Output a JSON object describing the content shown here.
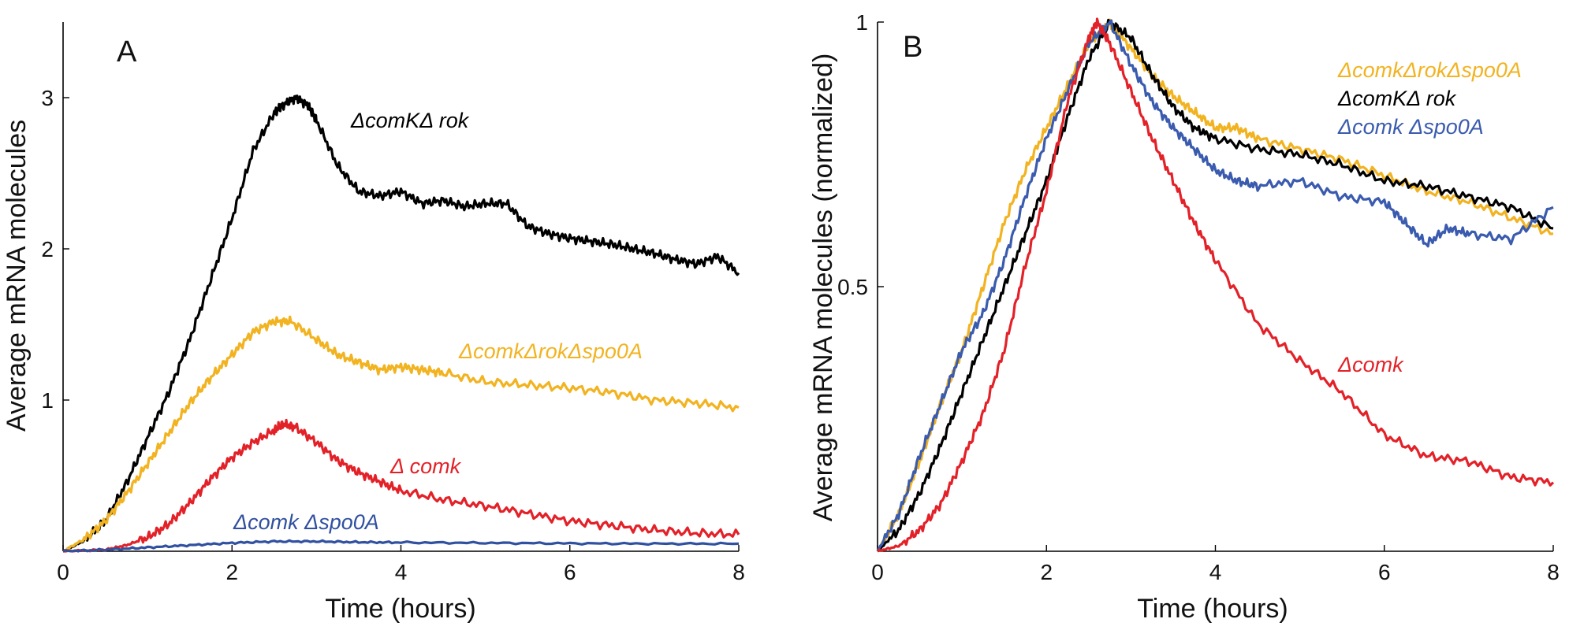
{
  "chart_data": [
    {
      "type": "line",
      "panel_label": "A",
      "xlabel": "Time (hours)",
      "ylabel": "Average mRNA molecules",
      "xlim": [
        0,
        8
      ],
      "ylim": [
        0,
        3.5
      ],
      "xticks": [
        0,
        2,
        4,
        6,
        8
      ],
      "yticks": [
        1,
        2,
        3
      ],
      "grid": false,
      "series": [
        {
          "name": "ΔcomKΔ rok",
          "color": "#000000",
          "x": [
            0,
            0.25,
            0.5,
            0.75,
            1.0,
            1.25,
            1.5,
            1.75,
            2.0,
            2.25,
            2.5,
            2.6,
            2.75,
            2.9,
            3.0,
            3.25,
            3.5,
            3.75,
            4.0,
            4.25,
            4.5,
            4.75,
            5.0,
            5.25,
            5.5,
            5.75,
            6.0,
            6.25,
            6.5,
            6.75,
            7.0,
            7.25,
            7.5,
            7.75,
            8.0
          ],
          "y": [
            0,
            0.07,
            0.2,
            0.45,
            0.75,
            1.05,
            1.4,
            1.8,
            2.2,
            2.65,
            2.9,
            2.95,
            3.0,
            2.95,
            2.85,
            2.55,
            2.38,
            2.35,
            2.38,
            2.3,
            2.32,
            2.28,
            2.3,
            2.3,
            2.15,
            2.1,
            2.07,
            2.05,
            2.03,
            2.0,
            1.97,
            1.93,
            1.9,
            1.95,
            1.84
          ]
        },
        {
          "name": "ΔcomkΔrokΔspo0A",
          "color": "#F2B321",
          "x": [
            0,
            0.25,
            0.5,
            0.75,
            1.0,
            1.25,
            1.5,
            1.75,
            2.0,
            2.25,
            2.5,
            2.7,
            3.0,
            3.25,
            3.5,
            3.75,
            4.0,
            4.25,
            4.5,
            5.0,
            5.5,
            6.0,
            6.5,
            7.0,
            7.5,
            8.0
          ],
          "y": [
            0,
            0.08,
            0.2,
            0.38,
            0.58,
            0.78,
            0.98,
            1.15,
            1.3,
            1.45,
            1.52,
            1.52,
            1.4,
            1.3,
            1.25,
            1.2,
            1.22,
            1.2,
            1.18,
            1.12,
            1.1,
            1.08,
            1.05,
            1.0,
            0.98,
            0.95
          ]
        },
        {
          "name": "Δ comk",
          "color": "#E32128",
          "x": [
            0,
            0.5,
            0.75,
            1.0,
            1.25,
            1.5,
            1.75,
            2.0,
            2.25,
            2.5,
            2.6,
            2.75,
            3.0,
            3.25,
            3.5,
            3.75,
            4.0,
            4.5,
            5.0,
            5.5,
            6.0,
            6.5,
            7.0,
            7.5,
            8.0
          ],
          "y": [
            0,
            0.01,
            0.04,
            0.09,
            0.18,
            0.32,
            0.48,
            0.62,
            0.72,
            0.8,
            0.84,
            0.82,
            0.72,
            0.6,
            0.52,
            0.46,
            0.4,
            0.34,
            0.3,
            0.25,
            0.2,
            0.17,
            0.14,
            0.12,
            0.11
          ]
        },
        {
          "name": "Δcomk Δspo0A",
          "color": "#3050A0",
          "x": [
            0,
            0.5,
            1.0,
            1.5,
            2.0,
            2.5,
            3.0,
            3.5,
            4.0,
            5.0,
            6.0,
            7.0,
            8.0
          ],
          "y": [
            0,
            0.01,
            0.025,
            0.04,
            0.055,
            0.065,
            0.065,
            0.06,
            0.058,
            0.055,
            0.052,
            0.05,
            0.05
          ]
        }
      ]
    },
    {
      "type": "line",
      "panel_label": "B",
      "xlabel": "Time (hours)",
      "ylabel": "Average mRNA molecules (normalized)",
      "xlim": [
        0,
        8
      ],
      "ylim": [
        0,
        1
      ],
      "xticks": [
        0,
        2,
        4,
        6,
        8
      ],
      "yticks": [
        0.5,
        1
      ],
      "grid": false,
      "series": [
        {
          "name": "ΔcomkΔrokΔspo0A",
          "color": "#F2B321",
          "x": [
            0,
            0.25,
            0.5,
            0.75,
            1.0,
            1.25,
            1.5,
            1.75,
            2.0,
            2.25,
            2.5,
            2.75,
            3.0,
            3.25,
            3.5,
            3.75,
            4.0,
            4.25,
            4.5,
            5.0,
            5.5,
            6.0,
            6.5,
            7.0,
            7.5,
            8.0
          ],
          "y": [
            0,
            0.07,
            0.17,
            0.28,
            0.38,
            0.5,
            0.62,
            0.72,
            0.8,
            0.88,
            0.96,
            1.0,
            0.95,
            0.9,
            0.86,
            0.83,
            0.8,
            0.8,
            0.78,
            0.76,
            0.74,
            0.71,
            0.68,
            0.66,
            0.63,
            0.6
          ]
        },
        {
          "name": "ΔcomKΔ rok",
          "color": "#000000",
          "x": [
            0,
            0.25,
            0.5,
            0.75,
            1.0,
            1.25,
            1.5,
            1.75,
            2.0,
            2.25,
            2.5,
            2.75,
            3.0,
            3.25,
            3.5,
            3.75,
            4.0,
            4.5,
            5.0,
            5.5,
            6.0,
            6.5,
            7.0,
            7.5,
            8.0
          ],
          "y": [
            0,
            0.04,
            0.11,
            0.2,
            0.3,
            0.4,
            0.5,
            0.6,
            0.7,
            0.82,
            0.93,
            1.0,
            0.97,
            0.9,
            0.84,
            0.8,
            0.78,
            0.76,
            0.75,
            0.73,
            0.7,
            0.69,
            0.67,
            0.65,
            0.61
          ]
        },
        {
          "name": "Δcomk Δspo0A",
          "color": "#3A5BAE",
          "x": [
            0,
            0.25,
            0.5,
            0.75,
            1.0,
            1.25,
            1.5,
            1.75,
            2.0,
            2.25,
            2.5,
            2.75,
            3.0,
            3.25,
            3.5,
            3.75,
            4.0,
            4.25,
            4.5,
            5.0,
            5.5,
            6.0,
            6.25,
            6.5,
            6.75,
            7.0,
            7.5,
            8.0
          ],
          "y": [
            0,
            0.07,
            0.18,
            0.28,
            0.38,
            0.45,
            0.55,
            0.67,
            0.78,
            0.87,
            0.96,
            1.0,
            0.92,
            0.85,
            0.8,
            0.76,
            0.72,
            0.7,
            0.69,
            0.7,
            0.67,
            0.66,
            0.62,
            0.58,
            0.61,
            0.6,
            0.59,
            0.65
          ]
        },
        {
          "name": "Δcomk",
          "color": "#E32128",
          "x": [
            0,
            0.25,
            0.5,
            0.75,
            1.0,
            1.25,
            1.5,
            1.75,
            2.0,
            2.25,
            2.5,
            2.6,
            2.75,
            3.0,
            3.25,
            3.5,
            3.75,
            4.0,
            4.5,
            5.0,
            5.5,
            6.0,
            6.5,
            7.0,
            7.5,
            8.0
          ],
          "y": [
            0,
            0.01,
            0.04,
            0.09,
            0.17,
            0.26,
            0.38,
            0.54,
            0.68,
            0.85,
            0.97,
            1.0,
            0.96,
            0.87,
            0.78,
            0.7,
            0.62,
            0.55,
            0.43,
            0.36,
            0.3,
            0.22,
            0.18,
            0.17,
            0.14,
            0.13
          ]
        }
      ]
    }
  ]
}
